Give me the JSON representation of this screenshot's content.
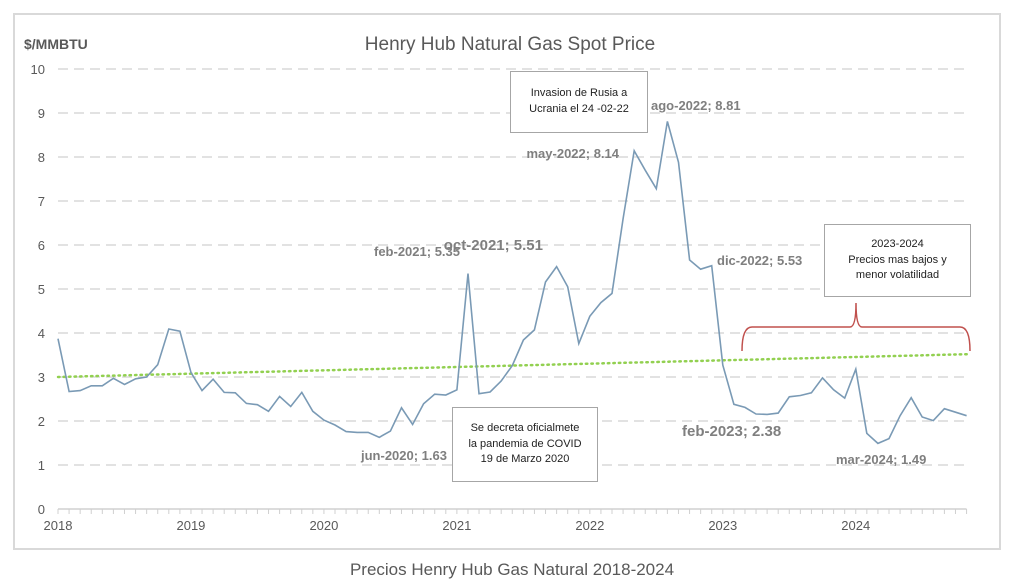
{
  "caption": "Precios Henry Hub Gas Natural 2018-2024",
  "annotations": {
    "invasion": [
      "Invasion de Rusia a",
      "Ucrania el 24 -02-22"
    ],
    "covid": [
      "Se decreta oficialmete",
      "la pandemia de COVID",
      "19 de Marzo 2020"
    ],
    "period": [
      "2023-2024",
      "Precios mas bajos y",
      "menor volatilidad"
    ]
  },
  "colors": {
    "line": "#7a9ab5",
    "trend": "#92d050",
    "bracket": "#c0504d",
    "grid": "#d9d9d9",
    "text": "#595959"
  },
  "chart_data": {
    "type": "line",
    "title": "Henry Hub Natural Gas Spot Price",
    "ylabel": "$/MMBTU",
    "xlabel": "",
    "ylim": [
      0,
      10
    ],
    "yticks": [
      "0",
      "1",
      "2",
      "3",
      "4",
      "5",
      "6",
      "7",
      "8",
      "9",
      "10"
    ],
    "xticks": [
      "2018",
      "2019",
      "2020",
      "2021",
      "2022",
      "2023",
      "2024"
    ],
    "x_start": "2018-01",
    "x_frequency": "monthly",
    "grid": "horizontal dashed",
    "series": [
      {
        "name": "Henry Hub Spot Price",
        "values": [
          3.87,
          2.67,
          2.69,
          2.8,
          2.8,
          2.97,
          2.83,
          2.96,
          3.0,
          3.28,
          4.09,
          4.04,
          3.1,
          2.69,
          2.95,
          2.65,
          2.64,
          2.4,
          2.37,
          2.22,
          2.56,
          2.33,
          2.65,
          2.22,
          2.02,
          1.91,
          1.76,
          1.74,
          1.74,
          1.63,
          1.77,
          2.3,
          1.92,
          2.39,
          2.61,
          2.59,
          2.71,
          5.35,
          2.62,
          2.66,
          2.91,
          3.26,
          3.84,
          4.07,
          5.16,
          5.51,
          5.05,
          3.76,
          4.38,
          4.69,
          4.9,
          6.6,
          8.14,
          7.7,
          7.28,
          8.81,
          7.88,
          5.66,
          5.45,
          5.53,
          3.27,
          2.38,
          2.31,
          2.16,
          2.15,
          2.18,
          2.55,
          2.58,
          2.64,
          2.98,
          2.71,
          2.52,
          3.18,
          1.72,
          1.49,
          1.6,
          2.12,
          2.53,
          2.09,
          2.01,
          2.28,
          2.2,
          2.12
        ]
      },
      {
        "name": "Linear trend",
        "values_start": 3.0,
        "values_end": 3.52
      }
    ],
    "data_labels": [
      {
        "index": 29,
        "text": "jun-2020; 1.63"
      },
      {
        "index": 37,
        "text": "feb-2021; 5.35"
      },
      {
        "index": 45,
        "text": "oct-2021; 5.51"
      },
      {
        "index": 52,
        "text": "may-2022; 8.14"
      },
      {
        "index": 55,
        "text": "ago-2022; 8.81"
      },
      {
        "index": 59,
        "text": "dic-2022; 5.53"
      },
      {
        "index": 61,
        "text": "feb-2023; 2.38"
      },
      {
        "index": 74,
        "text": "mar-2024; 1.49"
      }
    ]
  }
}
